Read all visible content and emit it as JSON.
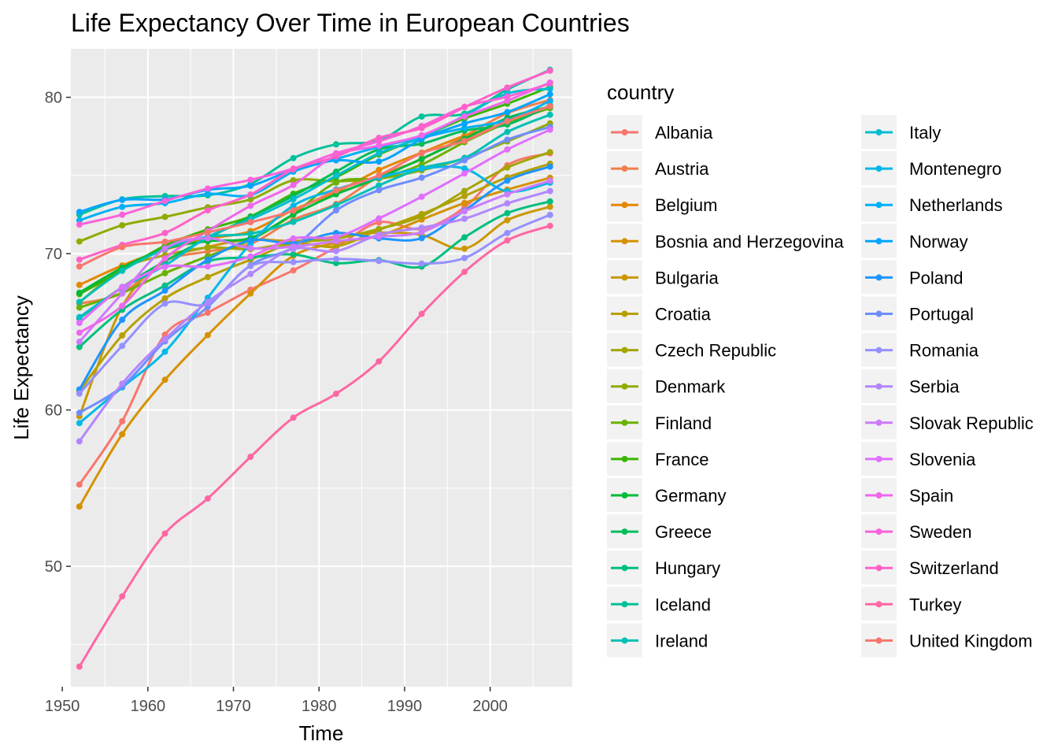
{
  "chart_data": {
    "type": "line",
    "title": "Life Expectancy Over Time in European Countries",
    "xlabel": "Time",
    "ylabel": "Life Expectancy",
    "xlim": [
      1951,
      2009.6
    ],
    "ylim": [
      42.3,
      83.1
    ],
    "x_ticks": [
      1950,
      1960,
      1970,
      1980,
      1990,
      2000
    ],
    "y_ticks": [
      50,
      60,
      70,
      80
    ],
    "grid": true,
    "smooth": true,
    "legend": {
      "title": "country",
      "position": "right",
      "columns": 2
    },
    "x": [
      1952,
      1957,
      1962,
      1967,
      1972,
      1977,
      1982,
      1987,
      1992,
      1997,
      2002,
      2007
    ],
    "series": [
      {
        "name": "Albania",
        "color": "#F8766D",
        "values": [
          55.23,
          59.28,
          64.82,
          66.22,
          67.69,
          68.93,
          70.42,
          72.0,
          71.58,
          72.95,
          75.65,
          76.42
        ]
      },
      {
        "name": "Austria",
        "color": "#F07E4E",
        "values": [
          66.8,
          67.48,
          69.54,
          70.14,
          70.63,
          72.17,
          73.18,
          74.94,
          76.04,
          77.51,
          78.98,
          79.83
        ]
      },
      {
        "name": "Belgium",
        "color": "#E58700",
        "values": [
          68.0,
          69.24,
          70.25,
          70.94,
          71.44,
          72.8,
          73.93,
          75.35,
          76.46,
          77.53,
          78.32,
          79.44
        ]
      },
      {
        "name": "Bosnia and Herzegovina",
        "color": "#D69100",
        "values": [
          53.82,
          58.45,
          61.93,
          64.79,
          67.45,
          69.86,
          70.69,
          71.14,
          72.18,
          73.24,
          74.09,
          74.85
        ]
      },
      {
        "name": "Bulgaria",
        "color": "#C99800",
        "values": [
          59.6,
          66.61,
          69.51,
          70.42,
          70.9,
          70.81,
          71.08,
          71.34,
          71.19,
          70.32,
          72.14,
          73.0
        ]
      },
      {
        "name": "Croatia",
        "color": "#B79F00",
        "values": [
          61.21,
          64.77,
          67.13,
          68.5,
          69.61,
          70.64,
          70.46,
          71.52,
          72.53,
          73.68,
          74.88,
          75.75
        ]
      },
      {
        "name": "Czech Republic",
        "color": "#A3A500",
        "values": [
          66.87,
          69.03,
          69.9,
          70.38,
          70.29,
          70.71,
          70.96,
          71.58,
          72.4,
          74.01,
          75.51,
          76.49
        ]
      },
      {
        "name": "Denmark",
        "color": "#8EAB00",
        "values": [
          70.78,
          71.81,
          72.35,
          72.96,
          73.47,
          74.69,
          74.63,
          74.8,
          75.33,
          76.11,
          77.18,
          78.33
        ]
      },
      {
        "name": "Finland",
        "color": "#6BB100",
        "values": [
          66.55,
          67.49,
          68.75,
          69.83,
          70.87,
          72.52,
          74.55,
          74.83,
          75.7,
          77.13,
          78.37,
          79.31
        ]
      },
      {
        "name": "France",
        "color": "#39B600",
        "values": [
          67.41,
          68.93,
          70.51,
          71.55,
          72.38,
          73.83,
          74.89,
          76.34,
          77.46,
          78.64,
          79.59,
          80.66
        ]
      },
      {
        "name": "Germany",
        "color": "#00BA38",
        "values": [
          67.5,
          69.1,
          70.3,
          70.8,
          71.0,
          72.5,
          73.8,
          74.847,
          76.07,
          77.34,
          78.67,
          79.406
        ]
      },
      {
        "name": "Greece",
        "color": "#00BC59",
        "values": [
          65.86,
          67.86,
          69.51,
          71.0,
          72.34,
          73.68,
          75.24,
          76.67,
          77.03,
          77.869,
          78.256,
          79.483
        ]
      },
      {
        "name": "Hungary",
        "color": "#00BF7D",
        "values": [
          64.03,
          66.41,
          67.96,
          69.5,
          69.76,
          69.95,
          69.39,
          69.58,
          69.17,
          71.04,
          72.59,
          73.338
        ]
      },
      {
        "name": "Iceland",
        "color": "#00C19A",
        "values": [
          72.49,
          73.47,
          73.68,
          73.73,
          74.46,
          76.11,
          76.99,
          77.23,
          78.77,
          78.95,
          80.5,
          81.757
        ]
      },
      {
        "name": "Ireland",
        "color": "#00C0B5",
        "values": [
          66.91,
          68.9,
          70.29,
          71.08,
          71.28,
          72.03,
          73.1,
          74.36,
          75.467,
          76.122,
          77.783,
          78.885
        ]
      },
      {
        "name": "Italy",
        "color": "#00BDD0",
        "values": [
          65.94,
          67.81,
          69.24,
          71.06,
          72.19,
          73.48,
          74.98,
          76.42,
          77.44,
          78.82,
          80.24,
          80.546
        ]
      },
      {
        "name": "Montenegro",
        "color": "#00B8E7",
        "values": [
          59.164,
          61.448,
          63.728,
          67.178,
          70.636,
          73.066,
          74.101,
          74.865,
          75.435,
          75.445,
          73.981,
          74.543
        ]
      },
      {
        "name": "Netherlands",
        "color": "#00B0F6",
        "values": [
          72.13,
          72.99,
          73.23,
          73.82,
          73.75,
          75.24,
          76.05,
          76.83,
          77.42,
          78.03,
          78.53,
          79.762
        ]
      },
      {
        "name": "Norway",
        "color": "#00A5FF",
        "values": [
          72.67,
          73.44,
          73.47,
          74.08,
          74.34,
          75.37,
          75.97,
          75.89,
          77.32,
          78.32,
          79.05,
          80.196
        ]
      },
      {
        "name": "Poland",
        "color": "#1E95FF",
        "values": [
          61.31,
          65.77,
          67.64,
          69.61,
          70.85,
          70.67,
          71.32,
          70.98,
          70.99,
          72.75,
          74.67,
          75.563
        ]
      },
      {
        "name": "Portugal",
        "color": "#6F8DFF",
        "values": [
          59.82,
          61.51,
          64.39,
          66.6,
          69.26,
          70.41,
          72.77,
          74.06,
          74.86,
          75.97,
          77.29,
          78.098
        ]
      },
      {
        "name": "Romania",
        "color": "#9590FF",
        "values": [
          61.05,
          64.1,
          66.8,
          66.8,
          69.21,
          69.46,
          69.66,
          69.53,
          69.36,
          69.72,
          71.322,
          72.476
        ]
      },
      {
        "name": "Serbia",
        "color": "#B186FF",
        "values": [
          57.996,
          61.685,
          64.531,
          66.914,
          68.7,
          70.3,
          70.162,
          71.218,
          71.659,
          72.232,
          73.213,
          74.002
        ]
      },
      {
        "name": "Slovak Republic",
        "color": "#CC7AFF",
        "values": [
          64.36,
          67.45,
          70.33,
          70.98,
          70.35,
          70.45,
          70.8,
          71.08,
          71.38,
          72.71,
          73.8,
          74.663
        ]
      },
      {
        "name": "Slovenia",
        "color": "#E16EFF",
        "values": [
          65.57,
          67.85,
          69.15,
          69.18,
          69.82,
          70.97,
          71.063,
          72.25,
          73.64,
          75.13,
          76.66,
          77.926
        ]
      },
      {
        "name": "Spain",
        "color": "#F066EA",
        "values": [
          64.94,
          66.66,
          69.69,
          71.44,
          73.06,
          74.39,
          76.3,
          76.9,
          77.57,
          78.77,
          79.78,
          80.941
        ]
      },
      {
        "name": "Sweden",
        "color": "#FA62DB",
        "values": [
          71.86,
          72.49,
          73.37,
          74.16,
          74.72,
          75.44,
          76.42,
          77.19,
          78.16,
          79.39,
          80.04,
          80.884
        ]
      },
      {
        "name": "Switzerland",
        "color": "#FF61C9",
        "values": [
          69.62,
          70.56,
          71.32,
          72.77,
          73.78,
          75.39,
          76.21,
          77.41,
          78.03,
          79.37,
          80.62,
          81.701
        ]
      },
      {
        "name": "Turkey",
        "color": "#FF67A4",
        "values": [
          43.585,
          48.079,
          52.098,
          54.336,
          57.005,
          59.507,
          61.036,
          63.108,
          66.146,
          68.835,
          70.845,
          71.777
        ]
      },
      {
        "name": "United Kingdom",
        "color": "#F8766D",
        "values": [
          69.18,
          70.42,
          70.76,
          71.36,
          72.01,
          72.76,
          74.04,
          75.007,
          76.42,
          77.218,
          78.471,
          79.425
        ]
      }
    ]
  }
}
